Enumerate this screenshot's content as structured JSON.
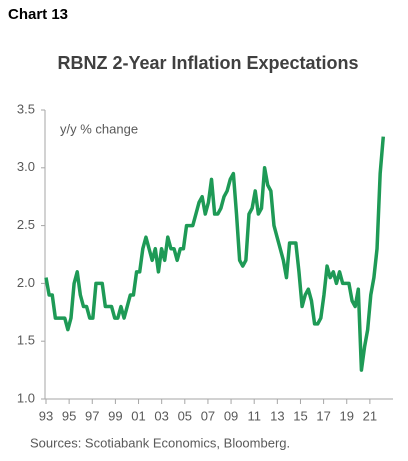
{
  "header": "Chart 13",
  "chart_data": {
    "type": "line",
    "title": "RBNZ 2-Year Inflation Expectations",
    "annotation": "y/y % change",
    "source": "Sources: Scotiabank Economics, Bloomberg.",
    "color": "#1e9a56",
    "x": [
      1993.0,
      1993.27,
      1993.54,
      1993.81,
      1994.08,
      1994.35,
      1994.62,
      1994.89,
      1995.16,
      1995.43,
      1995.7,
      1995.97,
      1996.24,
      1996.51,
      1996.78,
      1997.05,
      1997.32,
      1997.59,
      1997.86,
      1998.13,
      1998.4,
      1998.67,
      1998.94,
      1999.21,
      1999.48,
      1999.75,
      2000.02,
      2000.29,
      2000.56,
      2000.83,
      2001.1,
      2001.37,
      2001.64,
      2001.91,
      2002.18,
      2002.45,
      2002.72,
      2002.99,
      2003.26,
      2003.53,
      2003.8,
      2004.07,
      2004.34,
      2004.61,
      2004.88,
      2005.15,
      2005.42,
      2005.69,
      2005.96,
      2006.23,
      2006.5,
      2006.77,
      2007.04,
      2007.31,
      2007.58,
      2007.85,
      2008.12,
      2008.39,
      2008.66,
      2008.93,
      2009.2,
      2009.47,
      2009.74,
      2010.01,
      2010.28,
      2010.55,
      2010.82,
      2011.09,
      2011.36,
      2011.63,
      2011.9,
      2012.17,
      2012.44,
      2012.71,
      2012.98,
      2013.25,
      2013.52,
      2013.79,
      2014.06,
      2014.33,
      2014.6,
      2014.87,
      2015.14,
      2015.41,
      2015.68,
      2015.95,
      2016.22,
      2016.49,
      2016.76,
      2017.03,
      2017.3,
      2017.57,
      2017.84,
      2018.11,
      2018.38,
      2018.65,
      2018.92,
      2019.19,
      2019.46,
      2019.73,
      2020.0,
      2020.27,
      2020.54,
      2020.81,
      2021.08,
      2021.35,
      2021.62,
      2021.89,
      2022.16
    ],
    "values": [
      2.05,
      1.9,
      1.9,
      1.7,
      1.7,
      1.7,
      1.7,
      1.6,
      1.7,
      2.0,
      2.1,
      1.9,
      1.8,
      1.8,
      1.7,
      1.7,
      2.0,
      2.0,
      2.0,
      1.8,
      1.8,
      1.8,
      1.7,
      1.7,
      1.8,
      1.7,
      1.8,
      1.9,
      1.9,
      2.1,
      2.1,
      2.3,
      2.4,
      2.3,
      2.2,
      2.3,
      2.1,
      2.3,
      2.2,
      2.4,
      2.3,
      2.3,
      2.2,
      2.3,
      2.3,
      2.5,
      2.5,
      2.5,
      2.6,
      2.7,
      2.75,
      2.6,
      2.7,
      2.9,
      2.6,
      2.6,
      2.65,
      2.75,
      2.8,
      2.9,
      2.95,
      2.6,
      2.2,
      2.15,
      2.2,
      2.6,
      2.65,
      2.8,
      2.6,
      2.65,
      3.0,
      2.85,
      2.8,
      2.5,
      2.4,
      2.3,
      2.2,
      2.05,
      2.35,
      2.35,
      2.35,
      2.1,
      1.8,
      1.9,
      1.95,
      1.85,
      1.65,
      1.65,
      1.7,
      1.9,
      2.15,
      2.05,
      2.1,
      2.0,
      2.1,
      2.0,
      2.0,
      2.0,
      1.85,
      1.8,
      1.95,
      1.25,
      1.45,
      1.6,
      1.9,
      2.05,
      2.3,
      2.95,
      3.27
    ],
    "xlim": [
      1993,
      2023
    ],
    "xticks": [
      {
        "value": 1993,
        "label": "93"
      },
      {
        "value": 1995,
        "label": "95"
      },
      {
        "value": 1997,
        "label": "97"
      },
      {
        "value": 1999,
        "label": "99"
      },
      {
        "value": 2001,
        "label": "01"
      },
      {
        "value": 2003,
        "label": "03"
      },
      {
        "value": 2005,
        "label": "05"
      },
      {
        "value": 2007,
        "label": "07"
      },
      {
        "value": 2009,
        "label": "09"
      },
      {
        "value": 2011,
        "label": "11"
      },
      {
        "value": 2013,
        "label": "13"
      },
      {
        "value": 2015,
        "label": "15"
      },
      {
        "value": 2017,
        "label": "17"
      },
      {
        "value": 2019,
        "label": "19"
      },
      {
        "value": 2021,
        "label": "21"
      }
    ],
    "ylim": [
      1,
      3.5
    ],
    "yticks": [
      {
        "value": 1,
        "label": "1.0"
      },
      1.5,
      {
        "value": 2,
        "label": "2.0"
      },
      2.5,
      {
        "value": 3,
        "label": "3.0"
      },
      3.5
    ],
    "grid": false
  }
}
